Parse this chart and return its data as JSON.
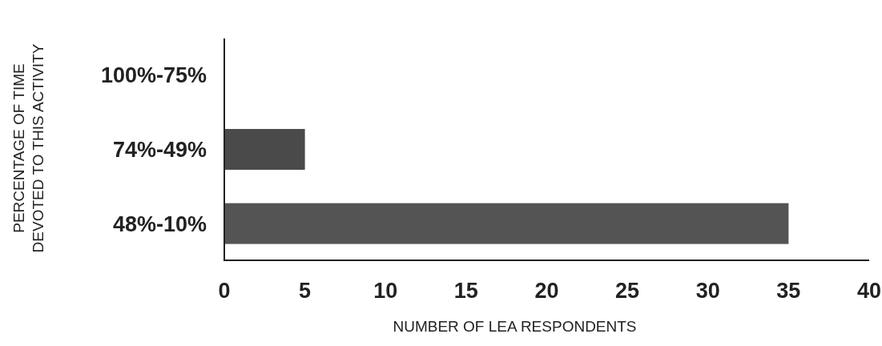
{
  "chart_data": {
    "type": "bar",
    "orientation": "horizontal",
    "categories": [
      "100%-75%",
      "74%-49%",
      "48%-10%"
    ],
    "values": [
      0,
      5,
      35
    ],
    "colors": [
      "#4a4a4a",
      "#4a4a4a",
      "#545454"
    ],
    "xlim": [
      0,
      40
    ],
    "xticks": [
      0,
      5,
      10,
      15,
      20,
      25,
      30,
      35,
      40
    ],
    "xlabel": "NUMBER OF LEA RESPONDENTS",
    "ylabel": "PERCENTAGE OF TIME\nDEVOTED TO THIS ACTIVITY",
    "grid": false
  }
}
